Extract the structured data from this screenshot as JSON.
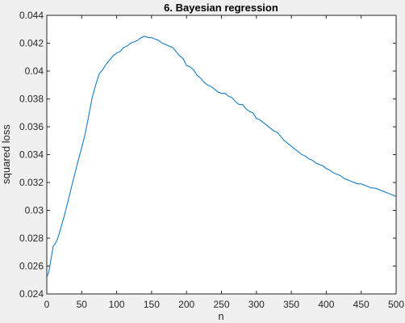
{
  "chart_data": {
    "type": "line",
    "title": "6. Bayesian regression",
    "xlabel": "n",
    "ylabel": "squared loss",
    "xlim": [
      0,
      500
    ],
    "ylim": [
      0.024,
      0.044
    ],
    "xticks": [
      0,
      50,
      100,
      150,
      200,
      250,
      300,
      350,
      400,
      450,
      500
    ],
    "yticks": [
      0.024,
      0.026,
      0.028,
      0.03,
      0.032,
      0.034,
      0.036,
      0.038,
      0.04,
      0.042,
      0.044
    ],
    "ytick_labels": [
      "0.024",
      "0.026",
      "0.028",
      "0.03",
      "0.032",
      "0.034",
      "0.036",
      "0.038",
      "0.04",
      "0.042",
      "0.044"
    ],
    "grid": false,
    "series": [
      {
        "color": "#0072bd",
        "x": [
          1,
          3,
          5,
          7,
          9,
          12,
          15,
          20,
          25,
          30,
          35,
          40,
          45,
          50,
          55,
          60,
          65,
          70,
          75,
          80,
          85,
          90,
          95,
          100,
          105,
          110,
          115,
          120,
          125,
          130,
          135,
          140,
          145,
          150,
          155,
          160,
          165,
          170,
          175,
          180,
          185,
          190,
          195,
          200,
          205,
          210,
          215,
          220,
          225,
          230,
          235,
          240,
          245,
          250,
          255,
          260,
          265,
          270,
          275,
          280,
          285,
          290,
          295,
          300,
          305,
          310,
          315,
          320,
          325,
          330,
          335,
          340,
          345,
          350,
          355,
          360,
          365,
          370,
          375,
          380,
          385,
          390,
          395,
          400,
          405,
          410,
          415,
          420,
          425,
          430,
          435,
          440,
          445,
          450,
          455,
          460,
          465,
          470,
          475,
          480,
          485,
          490,
          495,
          500
        ],
        "y": [
          0.0253,
          0.0256,
          0.0262,
          0.0268,
          0.0274,
          0.0276,
          0.0279,
          0.0287,
          0.0296,
          0.0306,
          0.0316,
          0.0326,
          0.0336,
          0.0345,
          0.0355,
          0.0368,
          0.0381,
          0.039,
          0.0398,
          0.0401,
          0.0405,
          0.0408,
          0.0411,
          0.0413,
          0.0414,
          0.0417,
          0.0418,
          0.042,
          0.0421,
          0.0422,
          0.0424,
          0.0425,
          0.0424,
          0.0424,
          0.0423,
          0.0422,
          0.042,
          0.0419,
          0.0418,
          0.0417,
          0.0414,
          0.0411,
          0.0409,
          0.0404,
          0.0403,
          0.0401,
          0.0397,
          0.0395,
          0.0392,
          0.039,
          0.0389,
          0.0387,
          0.0385,
          0.0384,
          0.0384,
          0.0382,
          0.0381,
          0.0378,
          0.0376,
          0.0376,
          0.0373,
          0.0371,
          0.037,
          0.0366,
          0.0365,
          0.0363,
          0.0361,
          0.0359,
          0.0357,
          0.0356,
          0.0353,
          0.035,
          0.0348,
          0.0346,
          0.0344,
          0.0342,
          0.034,
          0.0339,
          0.0337,
          0.0336,
          0.0334,
          0.0333,
          0.0332,
          0.033,
          0.0329,
          0.0327,
          0.0326,
          0.0325,
          0.0323,
          0.0322,
          0.0321,
          0.032,
          0.0319,
          0.0319,
          0.0318,
          0.0317,
          0.0316,
          0.0316,
          0.0315,
          0.0314,
          0.0313,
          0.0312,
          0.0311,
          0.031
        ]
      }
    ]
  }
}
